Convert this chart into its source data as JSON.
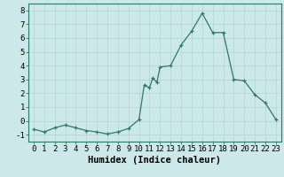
{
  "x": [
    0,
    1,
    2,
    3,
    4,
    5,
    6,
    7,
    8,
    9,
    10,
    10.5,
    11,
    11.3,
    11.7,
    12,
    13,
    14,
    15,
    16,
    17,
    18,
    19,
    20,
    21,
    22,
    23
  ],
  "y": [
    -0.6,
    -0.8,
    -0.5,
    -0.3,
    -0.5,
    -0.7,
    -0.8,
    -0.95,
    -0.8,
    -0.55,
    0.1,
    2.6,
    2.4,
    3.1,
    2.8,
    3.9,
    4.0,
    5.5,
    6.5,
    7.8,
    6.4,
    6.4,
    3.0,
    2.9,
    1.9,
    1.3,
    0.1
  ],
  "xlabel": "Humidex (Indice chaleur)",
  "xlim": [
    -0.5,
    23.5
  ],
  "ylim": [
    -1.5,
    8.5
  ],
  "yticks": [
    -1,
    0,
    1,
    2,
    3,
    4,
    5,
    6,
    7,
    8
  ],
  "xticks": [
    0,
    1,
    2,
    3,
    4,
    5,
    6,
    7,
    8,
    9,
    10,
    11,
    12,
    13,
    14,
    15,
    16,
    17,
    18,
    19,
    20,
    21,
    22,
    23
  ],
  "line_color": "#2d7a6a",
  "marker": "+",
  "marker_size": 3.5,
  "marker_lw": 0.9,
  "line_width": 0.9,
  "bg_color": "#cce8e8",
  "grid_color": "#afd4d4",
  "spine_color": "#2d7a6a",
  "tick_color": "#000000",
  "xlabel_fontsize": 7.5,
  "tick_fontsize": 6.5,
  "xlabel_bold": true
}
